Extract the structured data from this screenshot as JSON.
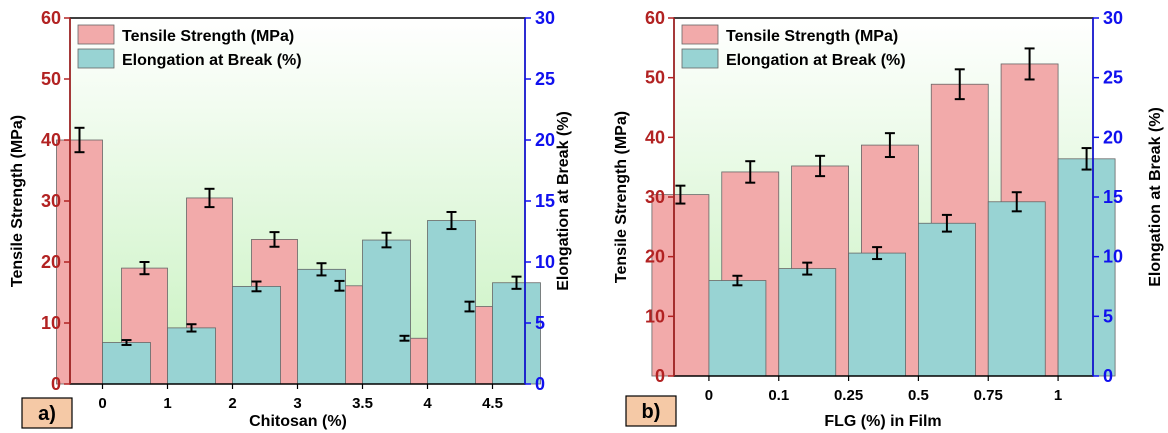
{
  "colors": {
    "tensile_fill": "#f2aaaa",
    "elongation_fill": "#98d3d3",
    "bar_stroke": "#666666",
    "left_axis_color": "#b22222",
    "right_axis_color": "#1010ee",
    "plot_bg_top": "#ffffff",
    "plot_bg_bottom": "#c8f2c0",
    "panel_label_bg": "#f5c9a6"
  },
  "chart_data": [
    {
      "type": "bar",
      "panel_label": "a)",
      "title": "",
      "xlabel": "Chitosan (%)",
      "ylabel": "Tensile Strength (MPa)",
      "ylabel_right": "Elongation at Break (%)",
      "categories": [
        "0",
        "1",
        "2",
        "3",
        "3.5",
        "4",
        "4.5"
      ],
      "ylim": [
        0,
        60
      ],
      "ylim_right": [
        0,
        30
      ],
      "yticks": [
        "0",
        "10",
        "20",
        "30",
        "40",
        "50",
        "60"
      ],
      "yticks_right": [
        "0",
        "5",
        "10",
        "15",
        "20",
        "25",
        "30"
      ],
      "legend_position": "top-left",
      "series": [
        {
          "name": "Tensile Strength (MPa)",
          "axis": "left",
          "values": [
            40.0,
            19.0,
            30.5,
            23.7,
            16.1,
            7.5,
            12.7
          ],
          "errors": [
            2.0,
            1.0,
            1.5,
            1.2,
            0.8,
            0.4,
            0.8
          ]
        },
        {
          "name": "Elongation at Break (%)",
          "axis": "right",
          "values": [
            3.4,
            4.6,
            8.0,
            9.4,
            11.8,
            13.4,
            8.3
          ],
          "errors": [
            0.2,
            0.3,
            0.4,
            0.5,
            0.6,
            0.7,
            0.5
          ]
        }
      ]
    },
    {
      "type": "bar",
      "panel_label": "b)",
      "title": "",
      "xlabel": "FLG (%) in Film",
      "ylabel": "Tensile Strength (MPa)",
      "ylabel_right": "Elongation at Break (%)",
      "categories": [
        "0",
        "0.1",
        "0.25",
        "0.5",
        "0.75",
        "1"
      ],
      "ylim": [
        0,
        60
      ],
      "ylim_right": [
        0,
        30
      ],
      "yticks": [
        "0",
        "10",
        "20",
        "30",
        "40",
        "50",
        "60"
      ],
      "yticks_right": [
        "0",
        "5",
        "10",
        "15",
        "20",
        "25",
        "30"
      ],
      "legend_position": "top-left",
      "series": [
        {
          "name": "Tensile Strength (MPa)",
          "axis": "left",
          "values": [
            30.4,
            34.2,
            35.2,
            38.7,
            48.9,
            52.3
          ],
          "errors": [
            1.5,
            1.8,
            1.7,
            2.0,
            2.5,
            2.6
          ]
        },
        {
          "name": "Elongation at Break (%)",
          "axis": "right",
          "values": [
            8.0,
            9.0,
            10.3,
            12.8,
            14.6,
            18.2
          ],
          "errors": [
            0.4,
            0.5,
            0.5,
            0.7,
            0.8,
            0.9
          ]
        }
      ]
    }
  ]
}
